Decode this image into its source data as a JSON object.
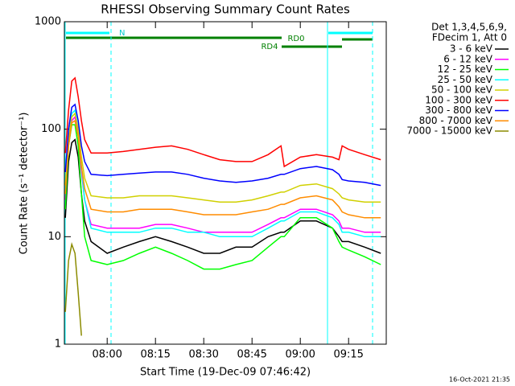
{
  "chart_data": {
    "type": "line",
    "title": "RHESSI Observing Summary Count Rates",
    "xlabel": "Start Time (19-Dec-09 07:46:42)",
    "ylabel": "Count Rate (s⁻¹ detector⁻¹)",
    "legend_header": [
      "Det 1,3,4,5,6,9,",
      "FDecim 1, Att 0"
    ],
    "legend": "right",
    "annotations": [
      "N",
      "RD0",
      "RD4"
    ],
    "footer": "16-Oct-2021 21:35",
    "ylog": true,
    "grid": false,
    "ylim": [
      1,
      1000
    ],
    "yticks": [
      1,
      10,
      100,
      1000
    ],
    "xlim": [
      "07:46:42",
      "09:26:42"
    ],
    "xticks": [
      "08:00",
      "08:15",
      "08:30",
      "08:45",
      "09:00",
      "09:15"
    ],
    "x": [
      "07:47",
      "07:48",
      "07:49",
      "07:50",
      "07:51",
      "07:52",
      "07:53",
      "07:55",
      "08:00",
      "08:05",
      "08:10",
      "08:15",
      "08:20",
      "08:25",
      "08:30",
      "08:35",
      "08:40",
      "08:45",
      "08:50",
      "08:54",
      "08:55",
      "09:00",
      "09:05",
      "09:10",
      "09:12",
      "09:13",
      "09:15",
      "09:20",
      "09:25"
    ],
    "series": [
      {
        "name": "3 - 6 keV",
        "color": "#000000",
        "values": [
          15,
          50,
          75,
          80,
          55,
          25,
          14,
          9,
          7,
          8,
          9,
          10,
          9,
          8,
          7,
          7,
          8,
          8,
          10,
          11,
          11,
          14,
          14,
          12,
          10,
          9,
          9,
          8,
          7
        ]
      },
      {
        "name": "6 - 12 keV",
        "color": "#ff00ff",
        "values": [
          22,
          75,
          120,
          130,
          90,
          40,
          22,
          13,
          12,
          12,
          12,
          13,
          13,
          12,
          11,
          11,
          11,
          11,
          13,
          15,
          15,
          18,
          18,
          16,
          14,
          12,
          12,
          11,
          11
        ]
      },
      {
        "name": "12 - 25 keV",
        "color": "#00ff00",
        "values": [
          18,
          70,
          110,
          110,
          70,
          25,
          10,
          6,
          5.5,
          6,
          7,
          8,
          7,
          6,
          5,
          5,
          5.5,
          6,
          8,
          10,
          10,
          15,
          15,
          12,
          9,
          8,
          7.5,
          6.5,
          5.5
        ]
      },
      {
        "name": "25 - 50 keV",
        "color": "#00ffff",
        "values": [
          28,
          80,
          140,
          150,
          100,
          45,
          22,
          12,
          11,
          11,
          11,
          12,
          12,
          11,
          11,
          10,
          10,
          10,
          12,
          14,
          14,
          17,
          17,
          15,
          13,
          11,
          11,
          10,
          10
        ]
      },
      {
        "name": "50 - 100 keV",
        "color": "#d0d000",
        "values": [
          30,
          80,
          130,
          140,
          100,
          55,
          35,
          24,
          23,
          23,
          24,
          24,
          24,
          23,
          22,
          21,
          21,
          22,
          24,
          26,
          26,
          30,
          31,
          28,
          25,
          23,
          22,
          21,
          21
        ]
      },
      {
        "name": "100 - 300 keV",
        "color": "#ff0000",
        "values": [
          60,
          150,
          280,
          300,
          200,
          120,
          80,
          60,
          60,
          62,
          65,
          68,
          70,
          65,
          58,
          52,
          50,
          50,
          58,
          70,
          45,
          55,
          58,
          55,
          52,
          70,
          65,
          58,
          52
        ]
      },
      {
        "name": "300 - 800 keV",
        "color": "#0000ff",
        "values": [
          40,
          100,
          160,
          170,
          120,
          70,
          50,
          38,
          37,
          38,
          39,
          40,
          40,
          38,
          35,
          33,
          32,
          33,
          35,
          38,
          38,
          43,
          45,
          42,
          38,
          34,
          33,
          32,
          30
        ]
      },
      {
        "name": "800 - 7000 keV",
        "color": "#ff8c00",
        "values": [
          25,
          70,
          115,
          120,
          85,
          45,
          28,
          18,
          17,
          17,
          18,
          18,
          18,
          17,
          16,
          16,
          16,
          17,
          18,
          20,
          20,
          23,
          24,
          22,
          19,
          17,
          16,
          15,
          15
        ]
      },
      {
        "name": "7000 - 15000 keV",
        "color": "#8b8b00",
        "values": [
          2,
          6,
          8.5,
          7,
          3,
          1.2,
          null,
          null,
          null,
          null,
          null,
          null,
          null,
          null,
          null,
          null,
          null,
          null,
          null,
          null,
          null,
          null,
          null,
          null,
          null,
          null,
          null,
          null,
          null
        ]
      }
    ]
  }
}
